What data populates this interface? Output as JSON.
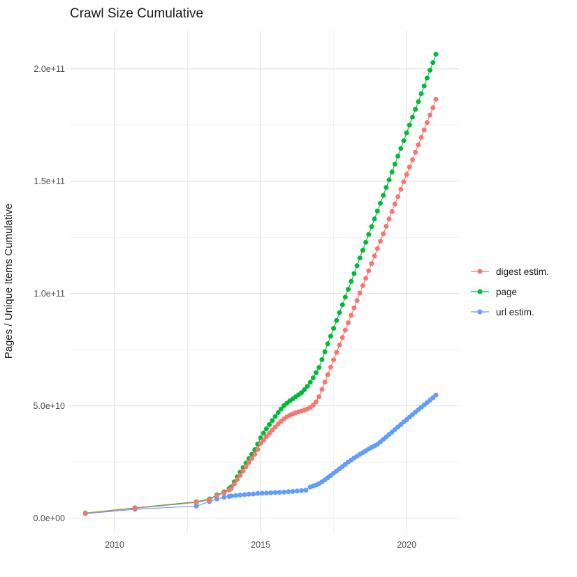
{
  "chart_data": {
    "type": "scatter-line",
    "title": "Crawl Size Cumulative",
    "xlabel": "",
    "ylabel": "Pages / Unique Items Cumulative",
    "x_tick_values": [
      2010,
      2015,
      2020
    ],
    "x_tick_labels": [
      "2010",
      "2015",
      "2020"
    ],
    "x_minor_tick_values": [
      2012.5,
      2017.5
    ],
    "y_tick_values_e9": [
      0,
      50,
      100,
      150,
      200
    ],
    "y_tick_labels": [
      "0.0e+00",
      "5.0e+10",
      "1.0e+11",
      "1.5e+11",
      "2.0e+11"
    ],
    "y_minor_tick_values_e9": [
      25,
      75,
      125,
      175
    ],
    "y_unit": "value x 1e9 (billions)",
    "x_domain": [
      2008.47,
      2021.79
    ],
    "y_domain_e9": [
      -6.6,
      217.6
    ],
    "grid": "on",
    "legend_position": "right",
    "colors": {
      "background": "#ffffff",
      "grid_major": "#e3e3e3",
      "grid_minor": "#f0f0f0",
      "axis_text": "#4d4d4d",
      "title_text": "#1a1a1a"
    },
    "series": [
      {
        "name": "digest estim.",
        "color": "#F8766D",
        "points": [
          [
            2009.0,
            2.2
          ],
          [
            2010.7,
            4.4
          ],
          [
            2012.8,
            7.0
          ],
          [
            2013.25,
            8.2
          ],
          [
            2013.5,
            10.0
          ],
          [
            2013.75,
            11.2
          ],
          [
            2013.92,
            12.6
          ],
          [
            2014.0,
            13.2
          ],
          [
            2014.1,
            15.2
          ],
          [
            2014.2,
            17.2
          ],
          [
            2014.3,
            19.1
          ],
          [
            2014.4,
            21.0
          ],
          [
            2014.5,
            22.9
          ],
          [
            2014.6,
            24.8
          ],
          [
            2014.7,
            26.6
          ],
          [
            2014.8,
            28.4
          ],
          [
            2014.9,
            30.6
          ],
          [
            2015.0,
            33.3
          ],
          [
            2015.1,
            34.8
          ],
          [
            2015.2,
            36.3
          ],
          [
            2015.3,
            37.8
          ],
          [
            2015.4,
            39.2
          ],
          [
            2015.5,
            40.6
          ],
          [
            2015.6,
            41.9
          ],
          [
            2015.7,
            43.1
          ],
          [
            2015.8,
            44.2
          ],
          [
            2015.9,
            45.1
          ],
          [
            2016.0,
            45.8
          ],
          [
            2016.1,
            46.4
          ],
          [
            2016.2,
            46.9
          ],
          [
            2016.3,
            47.3
          ],
          [
            2016.4,
            47.7
          ],
          [
            2016.5,
            48.1
          ],
          [
            2016.6,
            48.6
          ],
          [
            2016.7,
            49.3
          ],
          [
            2016.8,
            50.3
          ],
          [
            2016.9,
            51.8
          ],
          [
            2017.0,
            54.0
          ],
          [
            2017.1,
            57.3
          ],
          [
            2017.2,
            60.6
          ],
          [
            2017.3,
            63.9
          ],
          [
            2017.4,
            67.2
          ],
          [
            2017.5,
            70.5
          ],
          [
            2017.6,
            73.8
          ],
          [
            2017.7,
            77.1
          ],
          [
            2017.8,
            80.4
          ],
          [
            2017.9,
            83.7
          ],
          [
            2018.0,
            87.0
          ],
          [
            2018.1,
            90.3
          ],
          [
            2018.2,
            93.6
          ],
          [
            2018.3,
            96.9
          ],
          [
            2018.4,
            100.2
          ],
          [
            2018.5,
            103.5
          ],
          [
            2018.6,
            106.8
          ],
          [
            2018.7,
            110.1
          ],
          [
            2018.8,
            113.4
          ],
          [
            2018.9,
            116.7
          ],
          [
            2019.0,
            120.0
          ],
          [
            2019.1,
            123.3
          ],
          [
            2019.2,
            126.6
          ],
          [
            2019.3,
            129.9
          ],
          [
            2019.4,
            133.2
          ],
          [
            2019.5,
            136.5
          ],
          [
            2019.6,
            139.8
          ],
          [
            2019.7,
            143.1
          ],
          [
            2019.8,
            146.4
          ],
          [
            2019.9,
            149.7
          ],
          [
            2020.0,
            153.0
          ],
          [
            2020.1,
            156.3
          ],
          [
            2020.2,
            159.6
          ],
          [
            2020.3,
            162.9
          ],
          [
            2020.4,
            166.2
          ],
          [
            2020.5,
            169.5
          ],
          [
            2020.6,
            172.8
          ],
          [
            2020.7,
            176.1
          ],
          [
            2020.8,
            179.4
          ],
          [
            2020.9,
            182.7
          ],
          [
            2021.0,
            186.5
          ]
        ]
      },
      {
        "name": "page",
        "color": "#00BA38",
        "points": [
          [
            2009.0,
            2.3
          ],
          [
            2010.7,
            4.6
          ],
          [
            2012.8,
            7.3
          ],
          [
            2013.25,
            8.6
          ],
          [
            2013.5,
            10.4
          ],
          [
            2013.75,
            11.7
          ],
          [
            2013.92,
            13.2
          ],
          [
            2014.0,
            14.0
          ],
          [
            2014.1,
            16.2
          ],
          [
            2014.2,
            18.4
          ],
          [
            2014.3,
            20.5
          ],
          [
            2014.4,
            22.5
          ],
          [
            2014.5,
            24.5
          ],
          [
            2014.6,
            26.5
          ],
          [
            2014.7,
            28.5
          ],
          [
            2014.8,
            30.5
          ],
          [
            2014.9,
            33.0
          ],
          [
            2015.0,
            35.8
          ],
          [
            2015.1,
            37.9
          ],
          [
            2015.2,
            39.8
          ],
          [
            2015.3,
            41.7
          ],
          [
            2015.4,
            43.5
          ],
          [
            2015.5,
            45.3
          ],
          [
            2015.6,
            47.0
          ],
          [
            2015.7,
            48.6
          ],
          [
            2015.8,
            50.1
          ],
          [
            2015.9,
            51.2
          ],
          [
            2016.0,
            52.2
          ],
          [
            2016.1,
            53.1
          ],
          [
            2016.2,
            54.0
          ],
          [
            2016.3,
            54.9
          ],
          [
            2016.4,
            55.9
          ],
          [
            2016.5,
            57.2
          ],
          [
            2016.6,
            58.7
          ],
          [
            2016.7,
            60.5
          ],
          [
            2016.8,
            62.5
          ],
          [
            2016.9,
            64.8
          ],
          [
            2017.0,
            67.1
          ],
          [
            2017.1,
            70.6
          ],
          [
            2017.2,
            74.1
          ],
          [
            2017.3,
            77.6
          ],
          [
            2017.4,
            81.0
          ],
          [
            2017.5,
            84.5
          ],
          [
            2017.6,
            88.0
          ],
          [
            2017.7,
            91.5
          ],
          [
            2017.8,
            95.0
          ],
          [
            2017.9,
            98.4
          ],
          [
            2018.0,
            101.9
          ],
          [
            2018.1,
            105.4
          ],
          [
            2018.2,
            108.9
          ],
          [
            2018.3,
            112.4
          ],
          [
            2018.4,
            115.8
          ],
          [
            2018.5,
            119.3
          ],
          [
            2018.6,
            122.8
          ],
          [
            2018.7,
            126.3
          ],
          [
            2018.8,
            129.8
          ],
          [
            2018.9,
            133.2
          ],
          [
            2019.0,
            136.7
          ],
          [
            2019.1,
            140.2
          ],
          [
            2019.2,
            143.7
          ],
          [
            2019.3,
            147.2
          ],
          [
            2019.4,
            150.6
          ],
          [
            2019.5,
            154.1
          ],
          [
            2019.6,
            157.6
          ],
          [
            2019.7,
            161.1
          ],
          [
            2019.8,
            164.6
          ],
          [
            2019.9,
            168.0
          ],
          [
            2020.0,
            171.5
          ],
          [
            2020.1,
            175.0
          ],
          [
            2020.2,
            178.5
          ],
          [
            2020.3,
            182.0
          ],
          [
            2020.4,
            185.4
          ],
          [
            2020.5,
            188.9
          ],
          [
            2020.6,
            192.4
          ],
          [
            2020.7,
            195.9
          ],
          [
            2020.8,
            199.4
          ],
          [
            2020.9,
            202.8
          ],
          [
            2021.0,
            206.5
          ]
        ]
      },
      {
        "name": "url estim.",
        "color": "#619CFF",
        "points": [
          [
            2009.0,
            2.0
          ],
          [
            2010.7,
            4.0
          ],
          [
            2012.8,
            5.4
          ],
          [
            2013.25,
            7.4
          ],
          [
            2013.5,
            8.6
          ],
          [
            2013.75,
            9.3
          ],
          [
            2013.92,
            9.7
          ],
          [
            2014.0,
            9.9
          ],
          [
            2014.15,
            10.1
          ],
          [
            2014.3,
            10.3
          ],
          [
            2014.45,
            10.5
          ],
          [
            2014.6,
            10.7
          ],
          [
            2014.75,
            10.8
          ],
          [
            2014.9,
            11.0
          ],
          [
            2015.05,
            11.1
          ],
          [
            2015.2,
            11.2
          ],
          [
            2015.35,
            11.3
          ],
          [
            2015.5,
            11.4
          ],
          [
            2015.65,
            11.5
          ],
          [
            2015.8,
            11.6
          ],
          [
            2015.95,
            11.8
          ],
          [
            2016.1,
            11.9
          ],
          [
            2016.25,
            12.1
          ],
          [
            2016.4,
            12.3
          ],
          [
            2016.55,
            12.5
          ],
          [
            2016.7,
            13.9
          ],
          [
            2016.8,
            14.3
          ],
          [
            2016.9,
            14.8
          ],
          [
            2017.0,
            15.4
          ],
          [
            2017.1,
            16.2
          ],
          [
            2017.2,
            17.1
          ],
          [
            2017.3,
            18.0
          ],
          [
            2017.4,
            19.0
          ],
          [
            2017.5,
            20.0
          ],
          [
            2017.6,
            21.0
          ],
          [
            2017.7,
            22.0
          ],
          [
            2017.8,
            23.0
          ],
          [
            2017.9,
            24.0
          ],
          [
            2018.0,
            25.0
          ],
          [
            2018.1,
            25.9
          ],
          [
            2018.2,
            26.8
          ],
          [
            2018.3,
            27.6
          ],
          [
            2018.4,
            28.4
          ],
          [
            2018.5,
            29.2
          ],
          [
            2018.6,
            30.0
          ],
          [
            2018.7,
            30.8
          ],
          [
            2018.8,
            31.5
          ],
          [
            2018.9,
            32.2
          ],
          [
            2019.0,
            32.9
          ],
          [
            2019.1,
            34.0
          ],
          [
            2019.2,
            35.1
          ],
          [
            2019.3,
            36.2
          ],
          [
            2019.4,
            37.3
          ],
          [
            2019.5,
            38.4
          ],
          [
            2019.6,
            39.5
          ],
          [
            2019.7,
            40.6
          ],
          [
            2019.8,
            41.7
          ],
          [
            2019.9,
            42.8
          ],
          [
            2020.0,
            43.9
          ],
          [
            2020.1,
            45.0
          ],
          [
            2020.2,
            46.1
          ],
          [
            2020.3,
            47.2
          ],
          [
            2020.4,
            48.3
          ],
          [
            2020.5,
            49.4
          ],
          [
            2020.6,
            50.4
          ],
          [
            2020.7,
            51.5
          ],
          [
            2020.8,
            52.6
          ],
          [
            2020.9,
            53.6
          ],
          [
            2021.0,
            54.8
          ]
        ]
      }
    ],
    "draw_order": [
      2,
      1,
      0
    ],
    "point_radius": 3.5
  }
}
